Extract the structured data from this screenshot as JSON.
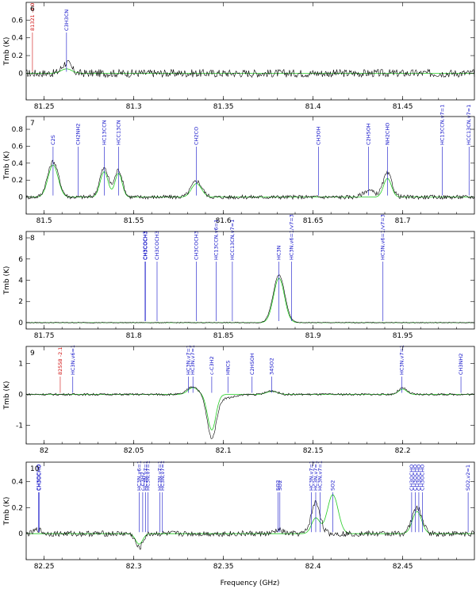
{
  "colors": {
    "observed": "#000000",
    "model": "#22cc22",
    "identified": "#1010c8",
    "unidentified": "#d01010"
  },
  "figure": {
    "xlabel": "Frequency (GHz)",
    "ylabel": "Tmb (K)"
  },
  "chart_data": [
    {
      "type": "line",
      "panel": "6",
      "xlim": [
        81.24,
        81.49
      ],
      "ylim": [
        -0.3,
        0.8
      ],
      "xticks": [
        81.25,
        81.3,
        81.35,
        81.4,
        81.45
      ],
      "yticks": [
        0,
        0.2,
        0.4,
        0.6
      ],
      "peaks": [
        {
          "x": 81.2625,
          "h": 0.12,
          "w": 0.0025
        }
      ],
      "noise": 0.045,
      "model_peaks": [
        {
          "x": 81.2625,
          "h": 0.05,
          "w": 0.003
        }
      ],
      "lines": [
        {
          "x": 81.2435,
          "label": "81321 -4.0",
          "color": "red"
        },
        {
          "x": 81.2625,
          "label": "C3H3CN",
          "color": "blue"
        }
      ]
    },
    {
      "type": "line",
      "panel": "7",
      "xlim": [
        81.49,
        81.74
      ],
      "ylim": [
        -0.2,
        0.95
      ],
      "xticks": [
        81.5,
        81.55,
        81.6,
        81.65,
        81.7
      ],
      "yticks": [
        0,
        0.2,
        0.4,
        0.6,
        0.8
      ],
      "peaks": [
        {
          "x": 81.505,
          "h": 0.42,
          "w": 0.003
        },
        {
          "x": 81.5335,
          "h": 0.34,
          "w": 0.0025
        },
        {
          "x": 81.5415,
          "h": 0.32,
          "w": 0.0022
        },
        {
          "x": 81.585,
          "h": 0.19,
          "w": 0.003
        },
        {
          "x": 81.681,
          "h": 0.08,
          "w": 0.003
        },
        {
          "x": 81.6915,
          "h": 0.28,
          "w": 0.0025
        }
      ],
      "noise": 0.025,
      "model_peaks": [
        {
          "x": 81.505,
          "h": 0.38,
          "w": 0.0028
        },
        {
          "x": 81.5335,
          "h": 0.3,
          "w": 0.0022
        },
        {
          "x": 81.5415,
          "h": 0.28,
          "w": 0.002
        },
        {
          "x": 81.585,
          "h": 0.16,
          "w": 0.0028
        },
        {
          "x": 81.6915,
          "h": 0.22,
          "w": 0.0022
        }
      ],
      "lines": [
        {
          "x": 81.505,
          "label": "C2S",
          "color": "blue"
        },
        {
          "x": 81.519,
          "label": "CH2NH2",
          "color": "blue"
        },
        {
          "x": 81.5335,
          "label": "HC13CCN",
          "color": "blue"
        },
        {
          "x": 81.5415,
          "label": "HCC13CN",
          "color": "blue"
        },
        {
          "x": 81.585,
          "label": "CH2CO",
          "color": "blue"
        },
        {
          "x": 81.653,
          "label": "CH3OH",
          "color": "blue"
        },
        {
          "x": 81.681,
          "label": "C2H5OH",
          "color": "blue"
        },
        {
          "x": 81.6915,
          "label": "NH2CHO",
          "color": "blue"
        },
        {
          "x": 81.722,
          "label": "HC13CCN,v7=1",
          "color": "blue"
        },
        {
          "x": 81.737,
          "label": "HCC13CN,v7=1",
          "color": "blue"
        }
      ]
    },
    {
      "type": "line",
      "panel": "8",
      "xlim": [
        81.74,
        81.99
      ],
      "ylim": [
        -0.6,
        8.6
      ],
      "xticks": [
        81.75,
        81.8,
        81.85,
        81.9,
        81.95
      ],
      "yticks": [
        0,
        2,
        4,
        6,
        8
      ],
      "peaks": [
        {
          "x": 81.881,
          "h": 4.5,
          "w": 0.0032
        }
      ],
      "noise": 0.04,
      "model_peaks": [
        {
          "x": 81.881,
          "h": 4.2,
          "w": 0.003
        }
      ],
      "lines": [
        {
          "x": 81.8063,
          "label": "CH3COCH3",
          "color": "blue"
        },
        {
          "x": 81.8065,
          "label": "CH3COCH3",
          "color": "blue"
        },
        {
          "x": 81.813,
          "label": "CH3COCH3",
          "color": "blue"
        },
        {
          "x": 81.835,
          "label": "CH3COCH3",
          "color": "blue"
        },
        {
          "x": 81.846,
          "label": "HC13CCN,v6=1",
          "color": "blue"
        },
        {
          "x": 81.855,
          "label": "HCC13CN,v7=1",
          "color": "blue"
        },
        {
          "x": 81.881,
          "label": "HC3N",
          "color": "blue"
        },
        {
          "x": 81.888,
          "label": "HC3N,v6=1/v7=3",
          "color": "blue"
        },
        {
          "x": 81.939,
          "label": "HC3N,v6=1/v7=3",
          "color": "blue"
        }
      ]
    },
    {
      "type": "line",
      "panel": "9",
      "xlim": [
        81.99,
        82.24
      ],
      "ylim": [
        -1.6,
        1.55
      ],
      "xticks": [
        82,
        82.05,
        82.1,
        82.15,
        82.2
      ],
      "yticks": [
        -1,
        0,
        1
      ],
      "peaks": [
        {
          "x": 82.083,
          "h": 0.26,
          "w": 0.003
        },
        {
          "x": 82.0935,
          "h": -1.35,
          "w": 0.0025
        },
        {
          "x": 82.1,
          "h": -0.12,
          "w": 0.006
        },
        {
          "x": 82.127,
          "h": 0.12,
          "w": 0.003
        },
        {
          "x": 82.2,
          "h": 0.2,
          "w": 0.0025
        }
      ],
      "noise": 0.035,
      "model_peaks": [
        {
          "x": 82.083,
          "h": 0.22,
          "w": 0.0028
        },
        {
          "x": 82.0935,
          "h": -1.15,
          "w": 0.0023
        },
        {
          "x": 82.127,
          "h": 0.1,
          "w": 0.003
        },
        {
          "x": 82.2,
          "h": 0.17,
          "w": 0.0023
        }
      ],
      "lines": [
        {
          "x": 82.009,
          "label": "82558 -2.1",
          "color": "red"
        },
        {
          "x": 82.016,
          "label": "HC3N,v6=1",
          "color": "blue"
        },
        {
          "x": 82.0805,
          "label": "HC3N,v7=1",
          "color": "blue"
        },
        {
          "x": 82.083,
          "label": "HC3N,v7=1",
          "color": "blue"
        },
        {
          "x": 82.0935,
          "label": "c-C3H2",
          "color": "blue"
        },
        {
          "x": 82.1025,
          "label": "HNCS",
          "color": "blue"
        },
        {
          "x": 82.116,
          "label": "C2H5OH",
          "color": "blue"
        },
        {
          "x": 82.127,
          "label": "34SO2",
          "color": "blue"
        },
        {
          "x": 82.1995,
          "label": "HC3N,v7=1",
          "color": "blue"
        },
        {
          "x": 82.2325,
          "label": "CH3NH2",
          "color": "blue"
        }
      ]
    },
    {
      "type": "line",
      "panel": "10",
      "xlim": [
        82.24,
        82.49
      ],
      "ylim": [
        -0.2,
        0.55
      ],
      "xticks": [
        82.25,
        82.3,
        82.35,
        82.4,
        82.45
      ],
      "yticks": [
        0,
        0.2,
        0.4
      ],
      "peaks": [
        {
          "x": 82.2465,
          "h": 0.03,
          "w": 0.002
        },
        {
          "x": 82.303,
          "h": -0.11,
          "w": 0.002
        },
        {
          "x": 82.381,
          "h": 0.03,
          "w": 0.002
        },
        {
          "x": 82.4015,
          "h": 0.24,
          "w": 0.0025
        },
        {
          "x": 82.458,
          "h": 0.2,
          "w": 0.0028
        }
      ],
      "noise": 0.022,
      "model_peaks": [
        {
          "x": 82.303,
          "h": -0.08,
          "w": 0.002
        },
        {
          "x": 82.4015,
          "h": 0.12,
          "w": 0.0023
        },
        {
          "x": 82.411,
          "h": 0.3,
          "w": 0.003
        },
        {
          "x": 82.458,
          "h": 0.17,
          "w": 0.0026
        }
      ],
      "lines": [
        {
          "x": 82.2468,
          "label": "CH3OCHO",
          "color": "blue"
        },
        {
          "x": 82.2472,
          "label": "CH3OCHO",
          "color": "blue"
        },
        {
          "x": 82.303,
          "label": "HC3N,v6=1",
          "color": "blue"
        },
        {
          "x": 82.305,
          "label": "c-C3H2",
          "color": "blue"
        },
        {
          "x": 82.3065,
          "label": "HC3N,v7=1",
          "color": "blue"
        },
        {
          "x": 82.308,
          "label": "HC3N,v7=1",
          "color": "blue"
        },
        {
          "x": 82.3145,
          "label": "HC3N,v7=1",
          "color": "blue"
        },
        {
          "x": 82.316,
          "label": "HC3N,v7=1",
          "color": "blue"
        },
        {
          "x": 82.3805,
          "label": "SO2",
          "color": "blue"
        },
        {
          "x": 82.3815,
          "label": "SO2",
          "color": "blue"
        },
        {
          "x": 82.399,
          "label": "HC3N,v7=1",
          "color": "blue"
        },
        {
          "x": 82.4015,
          "label": "HC3N,v7=1",
          "color": "blue"
        },
        {
          "x": 82.404,
          "label": "HC3N,v7=1",
          "color": "blue"
        },
        {
          "x": 82.411,
          "label": "SO2",
          "color": "blue"
        },
        {
          "x": 82.455,
          "label": "CH3OCHO",
          "color": "blue"
        },
        {
          "x": 82.457,
          "label": "CH3OCHO",
          "color": "blue"
        },
        {
          "x": 82.459,
          "label": "CH3OCHO",
          "color": "blue"
        },
        {
          "x": 82.461,
          "label": "CH3OCHO",
          "color": "blue"
        },
        {
          "x": 82.4865,
          "label": "SO2,v2=1",
          "color": "blue"
        }
      ]
    }
  ]
}
